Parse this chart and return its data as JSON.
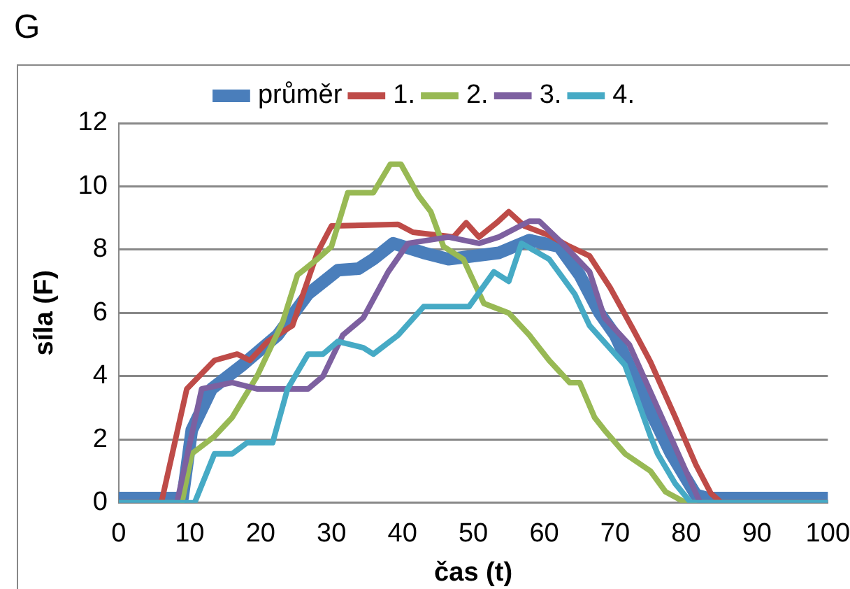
{
  "chart_data": {
    "type": "line",
    "title": "G",
    "xlabel": "čas (t)",
    "ylabel": "síla (F)",
    "xlim": [
      0,
      100
    ],
    "xticks": [
      0,
      10,
      20,
      30,
      40,
      50,
      60,
      70,
      80,
      90,
      100
    ],
    "ylim": [
      0,
      12
    ],
    "yticks": [
      0,
      2,
      4,
      6,
      8,
      10,
      12
    ],
    "grid": "y",
    "legend": "top",
    "marker": "none",
    "line_style": "solid",
    "series": [
      {
        "name": "průměr",
        "color": "#4a7ebb",
        "x": [
          0,
          9,
          10.3,
          13.1,
          17.4,
          22.4,
          26.7,
          30.9,
          33.8,
          35.9,
          38.7,
          43,
          46.5,
          53.6,
          57.9,
          62.1,
          65,
          67.8,
          70,
          74.3,
          77.9,
          81.4,
          83,
          100
        ],
        "values": [
          0.15,
          0.15,
          2.3,
          3.6,
          4.35,
          5.3,
          6.6,
          7.35,
          7.4,
          7.7,
          8.2,
          7.9,
          7.7,
          7.9,
          8.3,
          8.1,
          7.2,
          6,
          5.3,
          3.2,
          1.55,
          0.25,
          0.15,
          0.15
        ]
      },
      {
        "name": "1.",
        "color": "#be4b48",
        "x": [
          0,
          6,
          9.6,
          13.5,
          16.7,
          18.5,
          21,
          24.5,
          26,
          28,
          30,
          39.4,
          41.5,
          47.2,
          49,
          50.8,
          53.3,
          55,
          57.2,
          60.7,
          63.6,
          66.4,
          69.3,
          72.5,
          75,
          78.5,
          81.4,
          83.5,
          85,
          100
        ],
        "values": [
          0,
          0,
          3.6,
          4.5,
          4.7,
          4.5,
          5.1,
          5.6,
          6.6,
          7.9,
          8.75,
          8.8,
          8.55,
          8.4,
          8.85,
          8.4,
          8.85,
          9.2,
          8.75,
          8.45,
          8.1,
          7.8,
          6.8,
          5.5,
          4.45,
          2.7,
          1.2,
          0.3,
          0,
          0
        ]
      },
      {
        "name": "2.",
        "color": "#98b954",
        "x": [
          0,
          8.9,
          10.3,
          13.5,
          16,
          19.5,
          23.1,
          25.2,
          28,
          30,
          32.3,
          35.9,
          38.3,
          39.8,
          42.3,
          44,
          45.8,
          48.6,
          51.5,
          55,
          57.9,
          60.7,
          63.6,
          65,
          67.1,
          68.5,
          71.4,
          75,
          77.1,
          80,
          100
        ],
        "values": [
          0,
          0,
          1.55,
          2.1,
          2.7,
          4,
          5.7,
          7.2,
          7.7,
          8.1,
          9.8,
          9.8,
          10.7,
          10.7,
          9.7,
          9.2,
          8.1,
          7.7,
          6.3,
          6,
          5.3,
          4.5,
          3.8,
          3.8,
          2.7,
          2.3,
          1.55,
          1,
          0.35,
          0,
          0
        ]
      },
      {
        "name": "3.",
        "color": "#7d60a0",
        "x": [
          0,
          8.2,
          11.7,
          16,
          19.5,
          26.7,
          28.8,
          31.6,
          34.5,
          38,
          40.8,
          46.5,
          50.8,
          53.6,
          57.9,
          59.3,
          62.1,
          66.4,
          68.5,
          72,
          76,
          80,
          82,
          100
        ],
        "values": [
          0,
          0,
          3.6,
          3.8,
          3.6,
          3.6,
          4,
          5.3,
          5.85,
          7.3,
          8.2,
          8.4,
          8.2,
          8.4,
          8.9,
          8.9,
          8.3,
          7.3,
          5.85,
          5,
          3,
          1,
          0,
          0
        ]
      },
      {
        "name": "4.",
        "color": "#46aac5",
        "x": [
          0,
          10.7,
          13.5,
          16,
          18.1,
          21.7,
          23.8,
          26.7,
          28.8,
          30.9,
          34.5,
          35.9,
          39.4,
          43,
          49.4,
          52.9,
          55,
          56.8,
          60.7,
          64.3,
          66.4,
          71.4,
          75,
          76,
          78.5,
          80.7,
          100
        ],
        "values": [
          0,
          0,
          1.55,
          1.55,
          1.9,
          1.9,
          3.6,
          4.7,
          4.7,
          5.1,
          4.9,
          4.7,
          5.3,
          6.2,
          6.2,
          7.3,
          7,
          8.2,
          7.7,
          6.6,
          5.6,
          4.35,
          2.1,
          1.55,
          0.6,
          0,
          0
        ]
      }
    ]
  }
}
